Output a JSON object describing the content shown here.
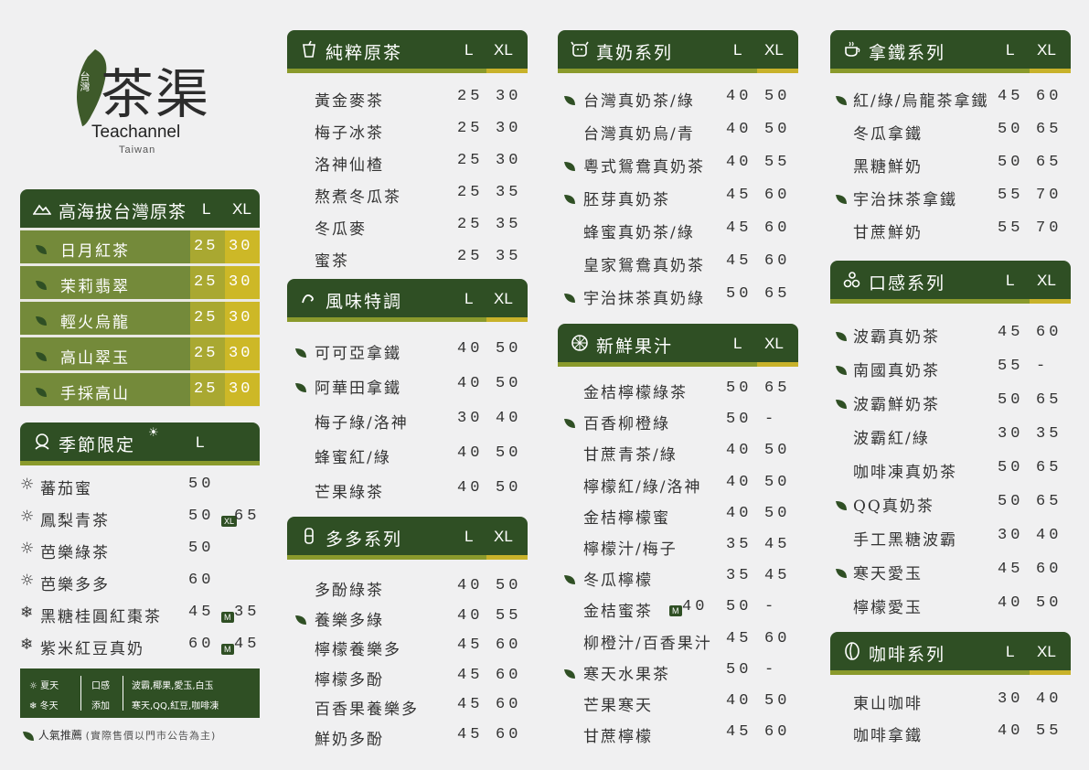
{
  "brand": {
    "mark": "台灣",
    "name": "茶渠",
    "en": "Teachannel",
    "sub": "Taiwan"
  },
  "colors": {
    "header": "#2f4f24",
    "accent": "#8a9a2c",
    "gold": "#c8b22a"
  },
  "sections": {
    "high": {
      "title": "高海拔台灣原茶",
      "L": "L",
      "XL": "XL",
      "items": [
        {
          "name": "日月紅茶",
          "p1": "25",
          "p2": "30"
        },
        {
          "name": "茉莉翡翠",
          "p1": "25",
          "p2": "30"
        },
        {
          "name": "輕火烏龍",
          "p1": "25",
          "p2": "30"
        },
        {
          "name": "高山翠玉",
          "p1": "25",
          "p2": "30"
        },
        {
          "name": "手採高山",
          "p1": "25",
          "p2": "30"
        }
      ]
    },
    "season": {
      "title": "季節限定",
      "L": "L",
      "items": [
        {
          "name": "蕃茄蜜",
          "p1": "50",
          "p2": ""
        },
        {
          "name": "鳳梨青茶",
          "p1": "50",
          "badge": "XL",
          "p2": "65"
        },
        {
          "name": "芭樂綠茶",
          "p1": "50",
          "p2": ""
        },
        {
          "name": "芭樂多多",
          "p1": "60",
          "p2": ""
        },
        {
          "name": "黑糖桂圓紅棗茶",
          "p1": "45",
          "badge": "M",
          "p2": "35"
        },
        {
          "name": "紫米紅豆真奶",
          "p1": "60",
          "badge": "M",
          "p2": "45"
        }
      ]
    },
    "pure": {
      "title": "純粹原茶",
      "L": "L",
      "XL": "XL",
      "items": [
        {
          "name": "黃金麥茶",
          "p1": "25",
          "p2": "30"
        },
        {
          "name": "梅子冰茶",
          "p1": "25",
          "p2": "30"
        },
        {
          "name": "洛神仙楂",
          "p1": "25",
          "p2": "30"
        },
        {
          "name": "熬煮冬瓜茶",
          "p1": "25",
          "p2": "35"
        },
        {
          "name": "冬瓜麥",
          "p1": "25",
          "p2": "35"
        },
        {
          "name": "蜜茶",
          "p1": "25",
          "p2": "35"
        }
      ]
    },
    "flavor": {
      "title": "風味特調",
      "L": "L",
      "XL": "XL",
      "items": [
        {
          "name": "可可亞拿鐵",
          "p1": "40",
          "p2": "50",
          "pop": true
        },
        {
          "name": "阿華田拿鐵",
          "p1": "40",
          "p2": "50",
          "pop": true
        },
        {
          "name": "梅子綠/洛神",
          "p1": "30",
          "p2": "40"
        },
        {
          "name": "蜂蜜紅/綠",
          "p1": "40",
          "p2": "50"
        },
        {
          "name": "芒果綠茶",
          "p1": "40",
          "p2": "50"
        }
      ]
    },
    "duoduo": {
      "title": "多多系列",
      "L": "L",
      "XL": "XL",
      "items": [
        {
          "name": "多酚綠茶",
          "p1": "40",
          "p2": "50"
        },
        {
          "name": "養樂多綠",
          "p1": "40",
          "p2": "55",
          "pop": true
        },
        {
          "name": "檸檬養樂多",
          "p1": "45",
          "p2": "60"
        },
        {
          "name": "檸檬多酚",
          "p1": "45",
          "p2": "60"
        },
        {
          "name": "百香果養樂多",
          "p1": "45",
          "p2": "60"
        },
        {
          "name": "鮮奶多酚",
          "p1": "45",
          "p2": "60"
        }
      ]
    },
    "milk": {
      "title": "真奶系列",
      "L": "L",
      "XL": "XL",
      "items": [
        {
          "name": "台灣真奶茶/綠",
          "p1": "40",
          "p2": "50",
          "pop": true
        },
        {
          "name": "台灣真奶烏/青",
          "p1": "40",
          "p2": "50"
        },
        {
          "name": "粵式鴛鴦真奶茶",
          "p1": "40",
          "p2": "55",
          "pop": true
        },
        {
          "name": "胚芽真奶茶",
          "p1": "45",
          "p2": "60",
          "pop": true
        },
        {
          "name": "蜂蜜真奶茶/綠",
          "p1": "45",
          "p2": "60"
        },
        {
          "name": "皇家鴛鴦真奶茶",
          "p1": "45",
          "p2": "60"
        },
        {
          "name": "宇治抹茶真奶綠",
          "p1": "50",
          "p2": "65",
          "pop": true
        }
      ]
    },
    "juice": {
      "title": "新鮮果汁",
      "L": "L",
      "XL": "XL",
      "items": [
        {
          "name": "金桔檸檬綠茶",
          "p1": "50",
          "p2": "65"
        },
        {
          "name": "百香柳橙綠",
          "p1": "50",
          "p2": "-",
          "pop": true
        },
        {
          "name": "甘蔗青茶/綠",
          "p1": "40",
          "p2": "50"
        },
        {
          "name": "檸檬紅/綠/洛神",
          "p1": "40",
          "p2": "50"
        },
        {
          "name": "金桔檸檬蜜",
          "p1": "40",
          "p2": "50"
        },
        {
          "name": "檸檬汁/梅子",
          "p1": "35",
          "p2": "45"
        },
        {
          "name": "冬瓜檸檬",
          "p1": "35",
          "p2": "45",
          "pop": true
        },
        {
          "name": "金桔蜜茶",
          "badge": "M",
          "extra": "40",
          "p1": "50",
          "p2": "-"
        },
        {
          "name": "柳橙汁/百香果汁",
          "p1": "45",
          "p2": "60"
        },
        {
          "name": "寒天水果茶",
          "p1": "50",
          "p2": "-",
          "pop": true
        },
        {
          "name": "芒果寒天",
          "p1": "40",
          "p2": "50"
        },
        {
          "name": "甘蔗檸檬",
          "p1": "45",
          "p2": "60"
        }
      ]
    },
    "latte": {
      "title": "拿鐵系列",
      "L": "L",
      "XL": "XL",
      "items": [
        {
          "name": "紅/綠/烏龍茶拿鐵",
          "p1": "45",
          "p2": "60",
          "pop": true
        },
        {
          "name": "冬瓜拿鐵",
          "p1": "50",
          "p2": "65"
        },
        {
          "name": "黑糖鮮奶",
          "p1": "50",
          "p2": "65"
        },
        {
          "name": "宇治抹茶拿鐵",
          "p1": "55",
          "p2": "70",
          "pop": true
        },
        {
          "name": "甘蔗鮮奶",
          "p1": "55",
          "p2": "70"
        }
      ]
    },
    "texture": {
      "title": "口感系列",
      "L": "L",
      "XL": "XL",
      "items": [
        {
          "name": "波霸真奶茶",
          "p1": "45",
          "p2": "60",
          "pop": true
        },
        {
          "name": "南國真奶茶",
          "p1": "55",
          "p2": "-",
          "pop": true
        },
        {
          "name": "波霸鮮奶茶",
          "p1": "50",
          "p2": "65",
          "pop": true
        },
        {
          "name": "波霸紅/綠",
          "p1": "30",
          "p2": "35"
        },
        {
          "name": "咖啡凍真奶茶",
          "p1": "50",
          "p2": "65"
        },
        {
          "name": "QQ真奶茶",
          "p1": "50",
          "p2": "65",
          "pop": true
        },
        {
          "name": "手工黑糖波霸",
          "p1": "30",
          "p2": "40"
        },
        {
          "name": "寒天愛玉",
          "p1": "45",
          "p2": "60",
          "pop": true
        },
        {
          "name": "檸檬愛玉",
          "p1": "40",
          "p2": "50"
        }
      ]
    },
    "coffee": {
      "title": "咖啡系列",
      "L": "L",
      "XL": "XL",
      "items": [
        {
          "name": "東山咖啡",
          "p1": "30",
          "p2": "40"
        },
        {
          "name": "咖啡拿鐵",
          "p1": "40",
          "p2": "55"
        }
      ]
    }
  },
  "legend": {
    "summer": "夏天",
    "winter": "冬天",
    "texture": "口感",
    "add": "添加",
    "line1": "波霸,椰果,愛玉,白玉",
    "line2": "寒天,QQ,紅豆,咖啡凍"
  },
  "footer": {
    "popular": "人氣推薦",
    "note": "(實際售價以門市公告為主)"
  }
}
